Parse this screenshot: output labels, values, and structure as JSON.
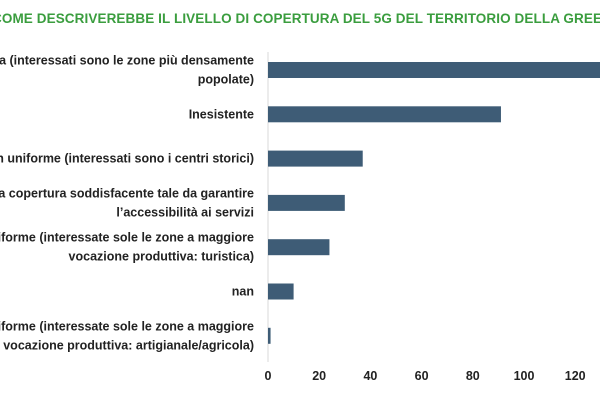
{
  "chart_data": {
    "type": "bar",
    "orientation": "horizontal",
    "title": "COME DESCRIVEREBBE IL LIVELLO DI COPERTURA DEL 5G DEL TERRITORIO DELLA GREEN COMMUNITY?",
    "categories": [
      [
        "Buona (interessati sono le zone più densamente",
        "popolate)"
      ],
      [
        "Inesistente"
      ],
      [
        "Non uniforme (interessati sono i centri storici)"
      ],
      [
        "Buona copertura soddisfacente tale da garantire",
        "l’accessibilità ai servizi"
      ],
      [
        "Non uniforme (interessate sole le zone a maggiore",
        "vocazione produttiva: turistica)"
      ],
      [
        "nan"
      ],
      [
        "Non uniforme (interessate sole le zone a maggiore",
        "vocazione produttiva: artigianale/agricola)"
      ]
    ],
    "values": [
      130,
      91,
      37,
      30,
      24,
      10,
      1
    ],
    "xlim": [
      0,
      130
    ],
    "xticks": [
      "0",
      "20",
      "40",
      "60",
      "80",
      "100",
      "120"
    ],
    "xtick_values": [
      0,
      20,
      40,
      60,
      80,
      100,
      120
    ],
    "bar_color": "#3e5c76",
    "title_color": "#3a9d3e",
    "grid": false,
    "legend": "none"
  }
}
